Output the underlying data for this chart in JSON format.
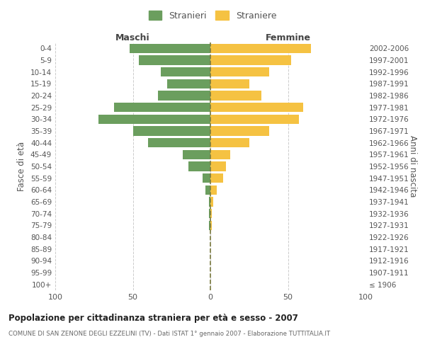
{
  "age_groups": [
    "100+",
    "95-99",
    "90-94",
    "85-89",
    "80-84",
    "75-79",
    "70-74",
    "65-69",
    "60-64",
    "55-59",
    "50-54",
    "45-49",
    "40-44",
    "35-39",
    "30-34",
    "25-29",
    "20-24",
    "15-19",
    "10-14",
    "5-9",
    "0-4"
  ],
  "birth_years": [
    "≤ 1906",
    "1907-1911",
    "1912-1916",
    "1917-1921",
    "1922-1926",
    "1927-1931",
    "1932-1936",
    "1937-1941",
    "1942-1946",
    "1947-1951",
    "1952-1956",
    "1957-1961",
    "1962-1966",
    "1967-1971",
    "1972-1976",
    "1977-1981",
    "1982-1986",
    "1987-1991",
    "1992-1996",
    "1997-2001",
    "2002-2006"
  ],
  "maschi": [
    0,
    0,
    0,
    0,
    0,
    1,
    1,
    1,
    3,
    5,
    14,
    18,
    40,
    50,
    72,
    62,
    34,
    28,
    32,
    46,
    52
  ],
  "femmine": [
    0,
    0,
    0,
    0,
    0,
    1,
    1,
    2,
    4,
    8,
    10,
    13,
    25,
    38,
    57,
    60,
    33,
    25,
    38,
    52,
    65
  ],
  "male_color": "#6b9e5e",
  "female_color": "#f5c242",
  "title": "Popolazione per cittadinanza straniera per età e sesso - 2007",
  "subtitle": "COMUNE DI SAN ZENONE DEGLI EZZELINI (TV) - Dati ISTAT 1° gennaio 2007 - Elaborazione TUTTITALIA.IT",
  "xlabel_left": "Maschi",
  "xlabel_right": "Femmine",
  "ylabel_left": "Fasce di età",
  "ylabel_right": "Anni di nascita",
  "legend_male": "Stranieri",
  "legend_female": "Straniere",
  "xlim": 100,
  "background_color": "#ffffff",
  "grid_color": "#cccccc",
  "bar_height": 0.8,
  "dashed_line_color": "#7a7a40"
}
